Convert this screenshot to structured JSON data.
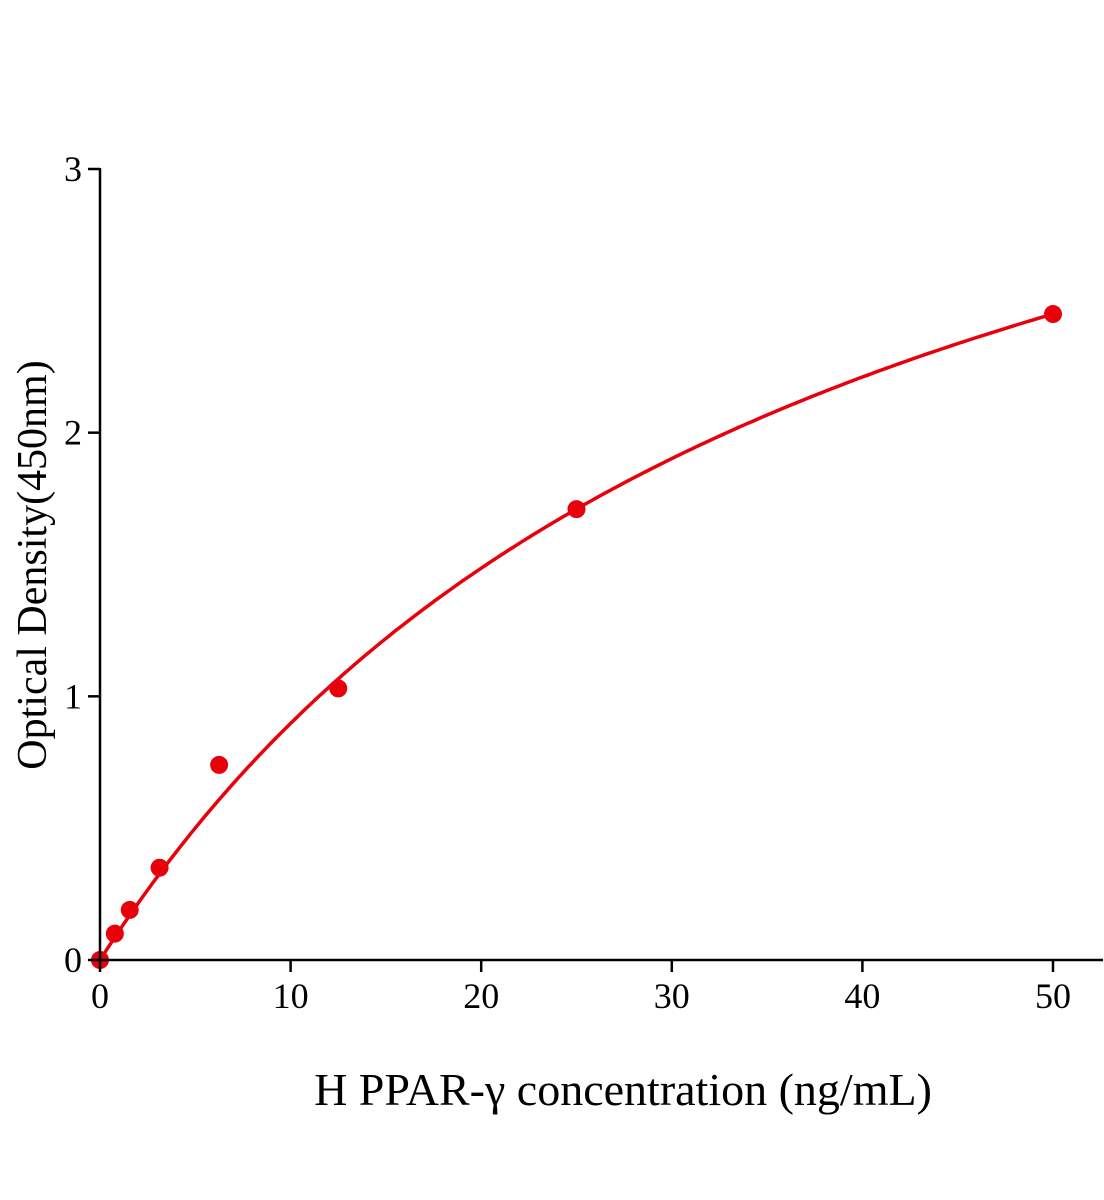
{
  "chart_data": {
    "type": "scatter",
    "title": "",
    "xlabel": "H PPAR-γ concentration (ng/mL)",
    "ylabel": "Optical Density(450nm)",
    "xlim": [
      0,
      52.5
    ],
    "ylim": [
      0,
      3
    ],
    "xticks": [
      0,
      10,
      20,
      30,
      40,
      50
    ],
    "yticks": [
      0,
      1,
      2,
      3
    ],
    "xtick_labels": [
      "0",
      "10",
      "20",
      "30",
      "40",
      "50"
    ],
    "ytick_labels": [
      "0",
      "1",
      "2",
      "3"
    ],
    "grid": false,
    "fit_line": true,
    "color": "#e8000b",
    "series": [
      {
        "x": [
          0,
          0.78,
          1.56,
          3.125,
          6.25,
          12.5,
          25,
          50
        ],
        "y": [
          0.0,
          0.1,
          0.19,
          0.35,
          0.74,
          1.03,
          1.71,
          2.45
        ]
      }
    ]
  }
}
